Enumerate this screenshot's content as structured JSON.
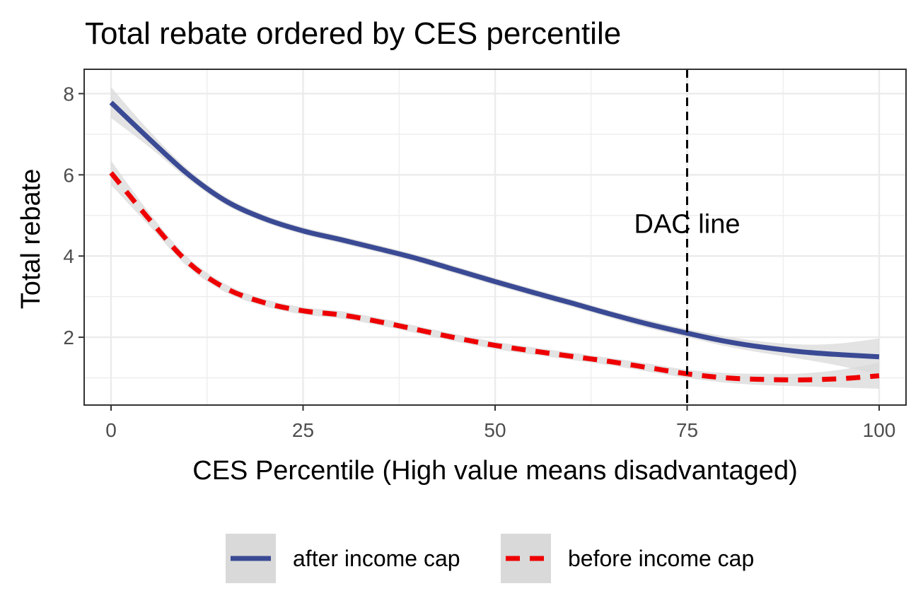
{
  "chart_data": {
    "type": "line",
    "title": "Total rebate ordered by CES percentile",
    "xlabel": "CES Percentile (High value means disadvantaged)",
    "ylabel": "Total rebate",
    "xlim": [
      -3.5,
      103.5
    ],
    "ylim": [
      0.33,
      8.6
    ],
    "x_ticks": [
      0,
      25,
      50,
      75,
      100
    ],
    "y_ticks": [
      2,
      4,
      6,
      8
    ],
    "x_tick_labels": [
      "0",
      "25",
      "50",
      "75",
      "100"
    ],
    "y_tick_labels": [
      "2",
      "4",
      "6",
      "8"
    ],
    "grid": true,
    "legend_position": "bottom",
    "series": [
      {
        "name": "after income cap",
        "color": "#3a4a94",
        "line_style": "solid",
        "x": [
          0,
          5,
          10,
          15,
          20,
          25,
          30,
          35,
          40,
          45,
          50,
          55,
          60,
          65,
          70,
          75,
          80,
          85,
          90,
          95,
          100
        ],
        "y": [
          7.78,
          6.88,
          6.02,
          5.35,
          4.92,
          4.62,
          4.4,
          4.17,
          3.93,
          3.65,
          3.37,
          3.1,
          2.84,
          2.57,
          2.32,
          2.1,
          1.9,
          1.75,
          1.64,
          1.57,
          1.52
        ],
        "band_half_width": [
          0.38,
          0.2,
          0.12,
          0.1,
          0.09,
          0.09,
          0.09,
          0.09,
          0.09,
          0.09,
          0.09,
          0.09,
          0.09,
          0.09,
          0.1,
          0.1,
          0.12,
          0.14,
          0.18,
          0.28,
          0.45
        ]
      },
      {
        "name": "before income cap",
        "color": "#ee0000",
        "line_style": "dashed",
        "x": [
          0,
          5,
          10,
          15,
          20,
          25,
          30,
          35,
          40,
          45,
          50,
          55,
          60,
          65,
          70,
          75,
          80,
          85,
          90,
          95,
          100
        ],
        "y": [
          6.05,
          4.9,
          3.85,
          3.2,
          2.85,
          2.65,
          2.55,
          2.38,
          2.18,
          1.98,
          1.8,
          1.66,
          1.53,
          1.4,
          1.25,
          1.1,
          1.0,
          0.96,
          0.95,
          0.98,
          1.05
        ],
        "band_half_width": [
          0.3,
          0.16,
          0.12,
          0.1,
          0.09,
          0.09,
          0.09,
          0.09,
          0.09,
          0.09,
          0.09,
          0.09,
          0.09,
          0.09,
          0.1,
          0.1,
          0.12,
          0.14,
          0.16,
          0.22,
          0.32
        ]
      }
    ],
    "annotations": [
      {
        "type": "vline",
        "x": 75,
        "line_style": "dashed",
        "color": "#000000"
      },
      {
        "type": "text",
        "text": "DAC line",
        "x": 75,
        "y": 4.8
      }
    ],
    "band_color": "#d9d9d9",
    "panel_border_color": "#333333",
    "grid_color": "#ebebeb"
  }
}
